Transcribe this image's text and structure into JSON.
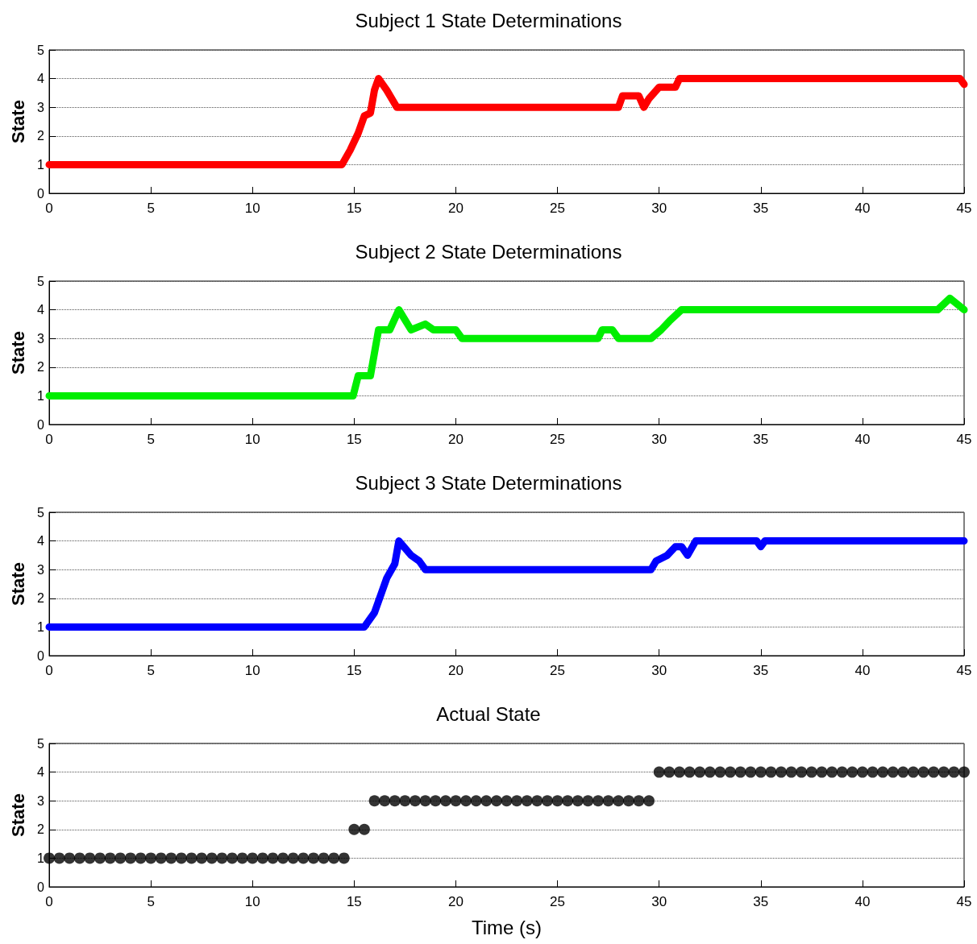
{
  "chart_data": [
    {
      "type": "line",
      "title": "Subject 1 State Determinations",
      "ylabel": "State",
      "xlim": [
        0,
        45
      ],
      "ylim": [
        0,
        5
      ],
      "xticks": [
        0,
        5,
        10,
        15,
        20,
        25,
        30,
        35,
        40,
        45
      ],
      "yticks": [
        0,
        1,
        2,
        3,
        4,
        5
      ],
      "grid": "y",
      "marker": "none",
      "line_style": "solid",
      "series": [
        {
          "color": "#ff0000",
          "x": [
            0,
            14.4,
            14.8,
            15.2,
            15.5,
            15.8,
            16.0,
            16.2,
            16.6,
            17.1,
            28.0,
            28.2,
            29.0,
            29.25,
            29.5,
            30.0,
            30.8,
            31.0,
            44.8,
            45
          ],
          "values": [
            1,
            1,
            1.5,
            2.1,
            2.7,
            2.8,
            3.6,
            4,
            3.6,
            3,
            3,
            3.4,
            3.4,
            3,
            3.3,
            3.7,
            3.7,
            4,
            4,
            3.8
          ]
        }
      ]
    },
    {
      "type": "line",
      "title": "Subject 2 State Determinations",
      "ylabel": "State",
      "xlim": [
        0,
        45
      ],
      "ylim": [
        0,
        5
      ],
      "xticks": [
        0,
        5,
        10,
        15,
        20,
        25,
        30,
        35,
        40,
        45
      ],
      "yticks": [
        0,
        1,
        2,
        3,
        4,
        5
      ],
      "grid": "y",
      "marker": "none",
      "line_style": "solid",
      "series": [
        {
          "color": "#00ee00",
          "x": [
            0,
            14.95,
            15.2,
            15.8,
            16.2,
            16.75,
            17.2,
            17.8,
            18.5,
            18.9,
            20.0,
            20.3,
            27.0,
            27.2,
            27.7,
            28.0,
            29.6,
            30.1,
            30.5,
            31.1,
            43.7,
            44.3,
            45
          ],
          "values": [
            1,
            1,
            1.7,
            1.7,
            3.3,
            3.3,
            4,
            3.3,
            3.5,
            3.3,
            3.3,
            3,
            3,
            3.3,
            3.3,
            3,
            3,
            3.3,
            3.6,
            4,
            4,
            4.4,
            4
          ]
        }
      ]
    },
    {
      "type": "line",
      "title": "Subject 3 State Determinations",
      "ylabel": "State",
      "xlim": [
        0,
        45
      ],
      "ylim": [
        0,
        5
      ],
      "xticks": [
        0,
        5,
        10,
        15,
        20,
        25,
        30,
        35,
        40,
        45
      ],
      "yticks": [
        0,
        1,
        2,
        3,
        4,
        5
      ],
      "grid": "y",
      "marker": "none",
      "line_style": "solid",
      "series": [
        {
          "color": "#0000ff",
          "x": [
            0,
            15.5,
            16.0,
            16.35,
            16.6,
            17.0,
            17.2,
            17.8,
            18.2,
            18.5,
            29.6,
            29.85,
            30.4,
            30.8,
            31.1,
            31.4,
            31.8,
            34.8,
            35,
            35.2,
            45
          ],
          "values": [
            1,
            1,
            1.5,
            2.2,
            2.7,
            3.2,
            4,
            3.5,
            3.3,
            3,
            3,
            3.3,
            3.5,
            3.8,
            3.8,
            3.5,
            4,
            4,
            3.8,
            4,
            4
          ]
        }
      ]
    },
    {
      "type": "scatter",
      "title": "Actual State",
      "xlabel": "Time (s)",
      "ylabel": "State",
      "xlim": [
        0,
        45
      ],
      "ylim": [
        0,
        5
      ],
      "xticks": [
        0,
        5,
        10,
        15,
        20,
        25,
        30,
        35,
        40,
        45
      ],
      "yticks": [
        0,
        1,
        2,
        3,
        4,
        5
      ],
      "grid": "y",
      "marker": "circle",
      "series": [
        {
          "color": "#000000",
          "x": [
            0,
            0.5,
            1,
            1.5,
            2,
            2.5,
            3,
            3.5,
            4,
            4.5,
            5,
            5.5,
            6,
            6.5,
            7,
            7.5,
            8,
            8.5,
            9,
            9.5,
            10,
            10.5,
            11,
            11.5,
            12,
            12.5,
            13,
            13.5,
            14,
            14.5,
            15,
            15.5,
            16,
            16.5,
            17,
            17.5,
            18,
            18.5,
            19,
            19.5,
            20,
            20.5,
            21,
            21.5,
            22,
            22.5,
            23,
            23.5,
            24,
            24.5,
            25,
            25.5,
            26,
            26.5,
            27,
            27.5,
            28,
            28.5,
            29,
            29.5,
            30,
            30.5,
            31,
            31.5,
            32,
            32.5,
            33,
            33.5,
            34,
            34.5,
            35,
            35.5,
            36,
            36.5,
            37,
            37.5,
            38,
            38.5,
            39,
            39.5,
            40,
            40.5,
            41,
            41.5,
            42,
            42.5,
            43,
            43.5,
            44,
            44.5,
            45
          ],
          "values": [
            1,
            1,
            1,
            1,
            1,
            1,
            1,
            1,
            1,
            1,
            1,
            1,
            1,
            1,
            1,
            1,
            1,
            1,
            1,
            1,
            1,
            1,
            1,
            1,
            1,
            1,
            1,
            1,
            1,
            1,
            2,
            2,
            3,
            3,
            3,
            3,
            3,
            3,
            3,
            3,
            3,
            3,
            3,
            3,
            3,
            3,
            3,
            3,
            3,
            3,
            3,
            3,
            3,
            3,
            3,
            3,
            3,
            3,
            3,
            3,
            4,
            4,
            4,
            4,
            4,
            4,
            4,
            4,
            4,
            4,
            4,
            4,
            4,
            4,
            4,
            4,
            4,
            4,
            4,
            4,
            4,
            4,
            4,
            4,
            4,
            4,
            4,
            4,
            4,
            4,
            4
          ]
        }
      ]
    }
  ]
}
